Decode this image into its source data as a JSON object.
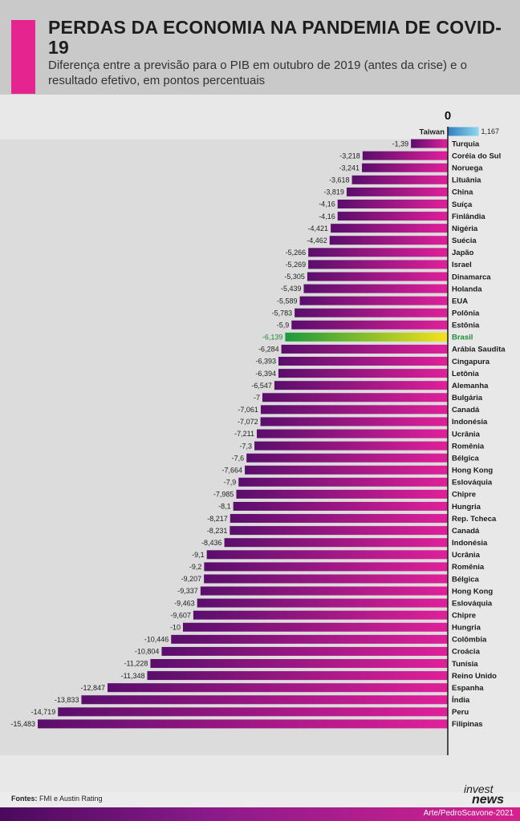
{
  "header": {
    "title": "PERDAS DA ECONOMIA NA PANDEMIA DE COVID-19",
    "subtitle": "Diferença entre a previsão para o PIB em outubro de 2019 (antes da crise) e o resultado efetivo, em pontos percentuais"
  },
  "chart_data": {
    "type": "bar",
    "orientation": "horizontal",
    "zero_label": "0",
    "categories": [
      "Taiwan",
      "Turquia",
      "Coréia do Sul",
      "Noruega",
      "Lituânia",
      "China",
      "Suíça",
      "Finlândia",
      "Nigéria",
      "Suécia",
      "Japão",
      "Israel",
      "Dinamarca",
      "Holanda",
      "EUA",
      "Polônia",
      "Estônia",
      "Brasil",
      "Arábia Saudita",
      "Cingapura",
      "Letônia",
      "Alemanha",
      "Bulgária",
      "Canadá",
      "Indonésia",
      "Ucrânia",
      "Romênia",
      "Bélgica",
      "Hong Kong",
      "Eslováquia",
      "Chipre",
      "Hungria",
      "Rep. Tcheca",
      "Canadá",
      "Indonésia",
      "Ucrânia",
      "Romênia",
      "Bélgica",
      "Hong Kong",
      "Eslováquia",
      "Chipre",
      "Hungria",
      "Colômbia",
      "Croácia",
      "Tunísia",
      "Reino Unido",
      "Espanha",
      "Índia",
      "Peru",
      "Filipinas"
    ],
    "values": [
      1.167,
      -1.39,
      -3.218,
      -3.241,
      -3.618,
      -3.819,
      -4.16,
      -4.16,
      -4.421,
      -4.462,
      -5.266,
      -5.269,
      -5.305,
      -5.439,
      -5.589,
      -5.783,
      -5.9,
      -6.139,
      -6.284,
      -6.393,
      -6.394,
      -6.547,
      -7,
      -7.061,
      -7.072,
      -7.211,
      -7.3,
      -7.6,
      -7.664,
      -7.9,
      -7.985,
      -8.1,
      -8.217,
      -8.231,
      -8.436,
      -9.1,
      -9.2,
      -9.207,
      -9.337,
      -9.463,
      -9.607,
      -10,
      -10.446,
      -10.804,
      -11.228,
      -11.348,
      -12.847,
      -13.833,
      -14.719,
      -15.483
    ],
    "value_labels": [
      "1,167",
      "-1,39",
      "-3,218",
      "-3,241",
      "-3,618",
      "-3,819",
      "-4,16",
      "-4,16",
      "-4,421",
      "-4,462",
      "-5,266",
      "-5,269",
      "-5,305",
      "-5,439",
      "-5,589",
      "-5,783",
      "-5,9",
      "-6,139",
      "-6,284",
      "-6,393",
      "-6,394",
      "-6,547",
      "-7",
      "-7,061",
      "-7,072",
      "-7,211",
      "-7,3",
      "-7,6",
      "-7,664",
      "-7,9",
      "-7,985",
      "-8,1",
      "-8,217",
      "-8,231",
      "-8,436",
      "-9,1",
      "-9,2",
      "-9,207",
      "-9,337",
      "-9,463",
      "-9,607",
      "-10",
      "-10,446",
      "-10,804",
      "-11,228",
      "-11,348",
      "-12,847",
      "-13,833",
      "-14,719",
      "-15,483"
    ],
    "highlight": "Brasil",
    "xlim": [
      -15.483,
      1.167
    ],
    "colors": {
      "negative_start": "#e0209a",
      "negative_end": "#5a0e6c",
      "positive_start": "#2f7fc0",
      "positive_end": "#8fd8ee",
      "highlight_start": "#f5e21a",
      "highlight_end": "#1c9a3e",
      "highlight_text": "#1c8a35"
    }
  },
  "footer": {
    "sources_label": "Fontes:",
    "sources_text": "FMI e Austin Rating",
    "logo_top": "invest",
    "logo_bottom": "news",
    "credit": "Arte/PedroScavone-2021"
  }
}
